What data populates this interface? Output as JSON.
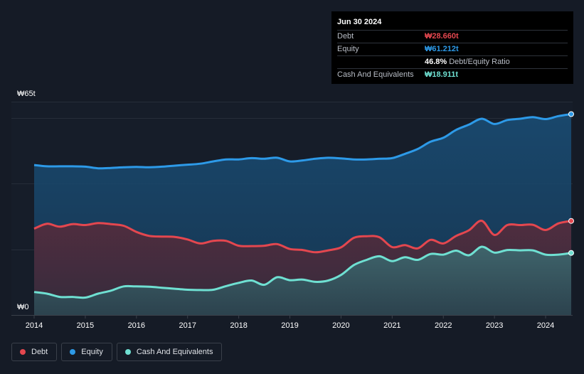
{
  "tooltip": {
    "date": "Jun 30 2024",
    "rows": [
      {
        "label": "Debt",
        "value": "₩28.660t",
        "note": ""
      },
      {
        "label": "Equity",
        "value": "₩61.212t",
        "note": ""
      },
      {
        "label": "",
        "value": "46.8%",
        "note": "Debt/Equity Ratio"
      },
      {
        "label": "Cash And Equivalents",
        "value": "₩18.911t",
        "note": ""
      }
    ]
  },
  "legend": [
    {
      "label": "Debt",
      "color": "#e4474f"
    },
    {
      "label": "Equity",
      "color": "#2d9ae8"
    },
    {
      "label": "Cash And Equivalents",
      "color": "#6fe0d2"
    }
  ],
  "chart_data": {
    "type": "area",
    "title": "",
    "xlabel": "",
    "ylabel": "",
    "y_top_label": "₩65t",
    "y_bottom_label": "₩0",
    "ylim": [
      0,
      65
    ],
    "xlim": [
      2014.0,
      2024.5
    ],
    "x_ticks": [
      "2014",
      "2015",
      "2016",
      "2017",
      "2018",
      "2019",
      "2020",
      "2021",
      "2022",
      "2023",
      "2024"
    ],
    "grid": true,
    "legend_position": "bottom-left",
    "series": [
      {
        "name": "Equity",
        "color": "#2d9ae8",
        "points": [
          [
            2014.0,
            45.7
          ],
          [
            2014.25,
            45.3
          ],
          [
            2014.5,
            45.3
          ],
          [
            2014.75,
            45.3
          ],
          [
            2015.0,
            45.2
          ],
          [
            2015.25,
            44.7
          ],
          [
            2015.5,
            44.8
          ],
          [
            2015.75,
            45.0
          ],
          [
            2016.0,
            45.1
          ],
          [
            2016.25,
            45.0
          ],
          [
            2016.5,
            45.2
          ],
          [
            2016.75,
            45.5
          ],
          [
            2017.0,
            45.8
          ],
          [
            2017.25,
            46.1
          ],
          [
            2017.5,
            46.8
          ],
          [
            2017.75,
            47.4
          ],
          [
            2018.0,
            47.4
          ],
          [
            2018.25,
            47.8
          ],
          [
            2018.5,
            47.6
          ],
          [
            2018.75,
            47.9
          ],
          [
            2019.0,
            46.8
          ],
          [
            2019.25,
            47.1
          ],
          [
            2019.5,
            47.6
          ],
          [
            2019.75,
            47.9
          ],
          [
            2020.0,
            47.7
          ],
          [
            2020.25,
            47.4
          ],
          [
            2020.5,
            47.4
          ],
          [
            2020.75,
            47.6
          ],
          [
            2021.0,
            47.8
          ],
          [
            2021.25,
            49.1
          ],
          [
            2021.5,
            50.6
          ],
          [
            2021.75,
            52.8
          ],
          [
            2022.0,
            54.0
          ],
          [
            2022.25,
            56.4
          ],
          [
            2022.5,
            58.0
          ],
          [
            2022.75,
            59.8
          ],
          [
            2023.0,
            58.2
          ],
          [
            2023.25,
            59.4
          ],
          [
            2023.5,
            59.8
          ],
          [
            2023.75,
            60.3
          ],
          [
            2024.0,
            59.7
          ],
          [
            2024.25,
            60.6
          ],
          [
            2024.5,
            61.212
          ]
        ]
      },
      {
        "name": "Debt",
        "color": "#e4474f",
        "points": [
          [
            2014.0,
            26.3
          ],
          [
            2014.25,
            27.8
          ],
          [
            2014.5,
            26.9
          ],
          [
            2014.75,
            27.7
          ],
          [
            2015.0,
            27.4
          ],
          [
            2015.25,
            28.0
          ],
          [
            2015.5,
            27.7
          ],
          [
            2015.75,
            27.2
          ],
          [
            2016.0,
            25.3
          ],
          [
            2016.25,
            24.1
          ],
          [
            2016.5,
            23.9
          ],
          [
            2016.75,
            23.8
          ],
          [
            2017.0,
            23.0
          ],
          [
            2017.25,
            21.8
          ],
          [
            2017.5,
            22.6
          ],
          [
            2017.75,
            22.6
          ],
          [
            2018.0,
            21.1
          ],
          [
            2018.25,
            21.0
          ],
          [
            2018.5,
            21.1
          ],
          [
            2018.75,
            21.6
          ],
          [
            2019.0,
            20.1
          ],
          [
            2019.25,
            19.8
          ],
          [
            2019.5,
            19.1
          ],
          [
            2019.75,
            19.7
          ],
          [
            2020.0,
            20.6
          ],
          [
            2020.25,
            23.5
          ],
          [
            2020.5,
            24.0
          ],
          [
            2020.75,
            23.7
          ],
          [
            2021.0,
            20.7
          ],
          [
            2021.25,
            21.3
          ],
          [
            2021.5,
            20.3
          ],
          [
            2021.75,
            22.9
          ],
          [
            2022.0,
            21.8
          ],
          [
            2022.25,
            24.1
          ],
          [
            2022.5,
            25.8
          ],
          [
            2022.75,
            28.7
          ],
          [
            2023.0,
            24.4
          ],
          [
            2023.25,
            27.4
          ],
          [
            2023.5,
            27.4
          ],
          [
            2023.75,
            27.5
          ],
          [
            2024.0,
            25.9
          ],
          [
            2024.25,
            27.9
          ],
          [
            2024.5,
            28.66
          ]
        ]
      },
      {
        "name": "Cash And Equivalents",
        "color": "#6fe0d2",
        "points": [
          [
            2014.0,
            7.0
          ],
          [
            2014.25,
            6.5
          ],
          [
            2014.5,
            5.5
          ],
          [
            2014.75,
            5.5
          ],
          [
            2015.0,
            5.3
          ],
          [
            2015.25,
            6.5
          ],
          [
            2015.5,
            7.4
          ],
          [
            2015.75,
            8.7
          ],
          [
            2016.0,
            8.7
          ],
          [
            2016.25,
            8.6
          ],
          [
            2016.5,
            8.3
          ],
          [
            2016.75,
            8.0
          ],
          [
            2017.0,
            7.7
          ],
          [
            2017.25,
            7.6
          ],
          [
            2017.5,
            7.7
          ],
          [
            2017.75,
            8.8
          ],
          [
            2018.0,
            9.8
          ],
          [
            2018.25,
            10.5
          ],
          [
            2018.5,
            9.2
          ],
          [
            2018.75,
            11.5
          ],
          [
            2019.0,
            10.6
          ],
          [
            2019.25,
            10.8
          ],
          [
            2019.5,
            10.1
          ],
          [
            2019.75,
            10.5
          ],
          [
            2020.0,
            12.2
          ],
          [
            2020.25,
            15.2
          ],
          [
            2020.5,
            16.8
          ],
          [
            2020.75,
            17.9
          ],
          [
            2021.0,
            16.4
          ],
          [
            2021.25,
            17.6
          ],
          [
            2021.5,
            16.8
          ],
          [
            2021.75,
            18.6
          ],
          [
            2022.0,
            18.4
          ],
          [
            2022.25,
            19.6
          ],
          [
            2022.5,
            18.2
          ],
          [
            2022.75,
            20.8
          ],
          [
            2023.0,
            19.0
          ],
          [
            2023.25,
            19.8
          ],
          [
            2023.5,
            19.7
          ],
          [
            2023.75,
            19.7
          ],
          [
            2024.0,
            18.4
          ],
          [
            2024.25,
            18.4
          ],
          [
            2024.5,
            18.911
          ]
        ]
      }
    ]
  }
}
